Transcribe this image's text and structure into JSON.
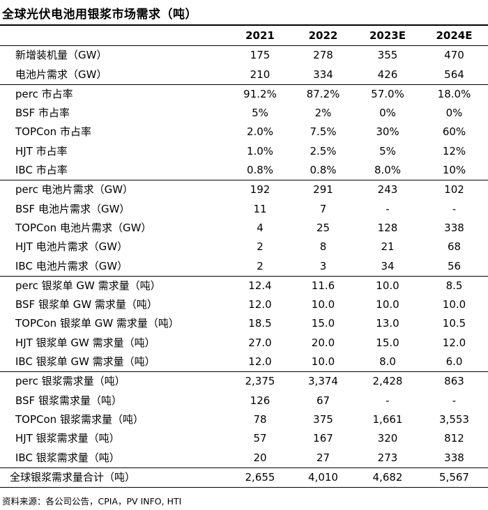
{
  "title": "全球光伏电池用银浆市场需求（吨）",
  "header": {
    "label": "",
    "years": [
      "2021",
      "2022",
      "2023E",
      "2024E"
    ]
  },
  "groups": [
    {
      "rows": [
        {
          "label": "新增装机量（GW）",
          "values": [
            "175",
            "278",
            "355",
            "470"
          ]
        },
        {
          "label": "电池片需求（GW）",
          "values": [
            "210",
            "334",
            "426",
            "564"
          ]
        }
      ]
    },
    {
      "rows": [
        {
          "label": "perc 市占率",
          "values": [
            "91.2%",
            "87.2%",
            "57.0%",
            "18.0%"
          ]
        },
        {
          "label": "BSF 市占率",
          "values": [
            "5%",
            "2%",
            "0%",
            "0%"
          ]
        },
        {
          "label": "TOPCon 市占率",
          "values": [
            "2.0%",
            "7.5%",
            "30%",
            "60%"
          ]
        },
        {
          "label": "HJT 市占率",
          "values": [
            "1.0%",
            "2.5%",
            "5%",
            "12%"
          ]
        },
        {
          "label": "IBC 市占率",
          "values": [
            "0.8%",
            "0.8%",
            "8.0%",
            "10%"
          ]
        }
      ]
    },
    {
      "rows": [
        {
          "label": "perc 电池片需求（GW）",
          "values": [
            "192",
            "291",
            "243",
            "102"
          ]
        },
        {
          "label": "BSF 电池片需求（GW）",
          "values": [
            "11",
            "7",
            "-",
            "-"
          ]
        },
        {
          "label": "TOPCon 电池片需求（GW）",
          "values": [
            "4",
            "25",
            "128",
            "338"
          ]
        },
        {
          "label": "HJT 电池片需求（GW）",
          "values": [
            "2",
            "8",
            "21",
            "68"
          ]
        },
        {
          "label": "IBC 电池片需求（GW）",
          "values": [
            "2",
            "3",
            "34",
            "56"
          ]
        }
      ]
    },
    {
      "rows": [
        {
          "label": "perc 银浆单 GW 需求量（吨）",
          "values": [
            "12.4",
            "11.6",
            "10.0",
            "8.5"
          ]
        },
        {
          "label": "BSF 银浆单 GW 需求量（吨）",
          "values": [
            "12.0",
            "10.0",
            "10.0",
            "10.0"
          ]
        },
        {
          "label": "TOPCon 银浆单 GW 需求量（吨）",
          "values": [
            "18.5",
            "15.0",
            "13.0",
            "10.5"
          ]
        },
        {
          "label": "HJT 银浆单 GW 需求量（吨）",
          "values": [
            "27.0",
            "20.0",
            "15.0",
            "12.0"
          ]
        },
        {
          "label": "IBC 银浆单 GW 需求量（吨）",
          "values": [
            "12.0",
            "10.0",
            "8.0",
            "6.0"
          ]
        }
      ]
    },
    {
      "rows": [
        {
          "label": "perc 银浆需求量（吨）",
          "values": [
            "2,375",
            "3,374",
            "2,428",
            "863"
          ]
        },
        {
          "label": "BSF 银浆需求量（吨）",
          "values": [
            "126",
            "67",
            "-",
            "-"
          ]
        },
        {
          "label": "TOPCon 银浆需求量（吨）",
          "values": [
            "78",
            "375",
            "1,661",
            "3,553"
          ]
        },
        {
          "label": "HJT 银浆需求量（吨）",
          "values": [
            "57",
            "167",
            "320",
            "812"
          ]
        },
        {
          "label": "IBC 银浆需求量（吨）",
          "values": [
            "20",
            "27",
            "273",
            "338"
          ]
        }
      ]
    }
  ],
  "total": {
    "label": "全球银浆需求量合计（吨）",
    "values": [
      "2,655",
      "4,010",
      "4,682",
      "5,567"
    ]
  },
  "source": "资料来源：各公司公告，CPIA，PV INFO, HTI"
}
